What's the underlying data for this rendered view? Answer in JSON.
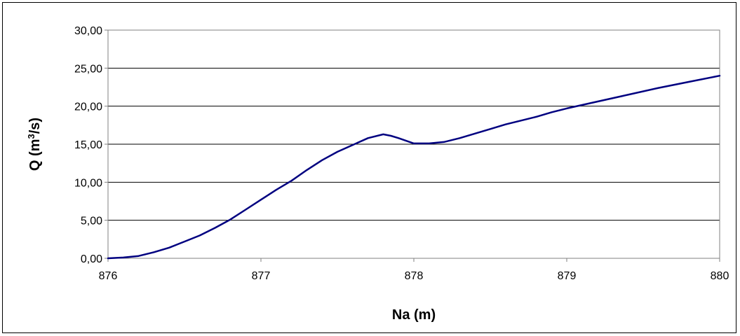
{
  "chart_data": {
    "type": "line",
    "title": "",
    "xlabel": "Na (m)",
    "ylabel": {
      "pre": "Q (m",
      "sup": "3",
      "post": "/s)"
    },
    "xlim": [
      876,
      880
    ],
    "ylim": [
      0,
      30
    ],
    "x_ticks": [
      {
        "value": 876,
        "label": "876"
      },
      {
        "value": 877,
        "label": "877"
      },
      {
        "value": 878,
        "label": "878"
      },
      {
        "value": 879,
        "label": "879"
      },
      {
        "value": 880,
        "label": "880"
      }
    ],
    "y_ticks": [
      {
        "value": 0,
        "label": "0,00"
      },
      {
        "value": 5,
        "label": "5,00"
      },
      {
        "value": 10,
        "label": "10,00"
      },
      {
        "value": 15,
        "label": "15,00"
      },
      {
        "value": 20,
        "label": "20,00"
      },
      {
        "value": 25,
        "label": "25,00"
      },
      {
        "value": 30,
        "label": "30,00"
      }
    ],
    "grid": {
      "horizontal": true,
      "vertical": false
    },
    "legend": "none",
    "line_color": "#000080",
    "series": [
      {
        "x": [
          876.0,
          876.1,
          876.2,
          876.3,
          876.4,
          876.5,
          876.6,
          876.7,
          876.8,
          876.9,
          877.0,
          877.1,
          877.2,
          877.3,
          877.4,
          877.5,
          877.6,
          877.7,
          877.8,
          877.85,
          877.9,
          878.0,
          878.1,
          878.2,
          878.3,
          878.4,
          878.5,
          878.6,
          878.7,
          878.8,
          878.9,
          879.0,
          879.2,
          879.4,
          879.6,
          879.8,
          880.0
        ],
        "y": [
          0.0,
          0.1,
          0.3,
          0.8,
          1.4,
          2.2,
          3.0,
          4.0,
          5.1,
          6.4,
          7.7,
          9.0,
          10.2,
          11.6,
          12.9,
          14.0,
          14.9,
          15.8,
          16.3,
          16.1,
          15.8,
          15.1,
          15.1,
          15.3,
          15.8,
          16.4,
          17.0,
          17.6,
          18.1,
          18.6,
          19.2,
          19.7,
          20.6,
          21.5,
          22.4,
          23.2,
          24.0
        ]
      }
    ]
  }
}
